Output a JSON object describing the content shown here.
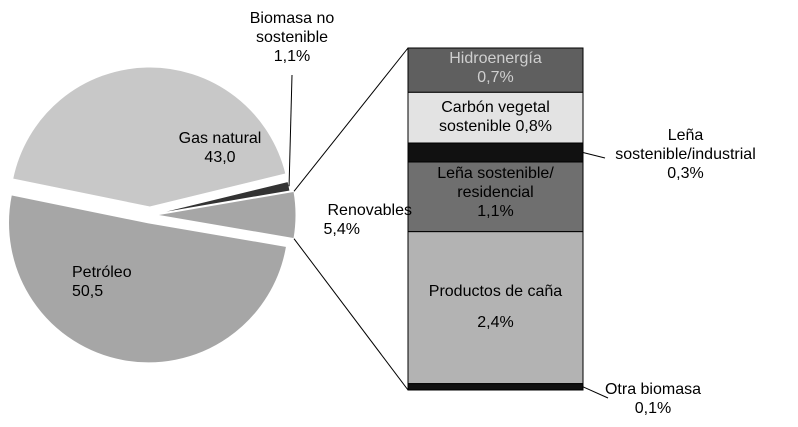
{
  "chart_data": {
    "type": "bar-of-pie",
    "categories": [
      "Renovables",
      "Biomasa no sostenible",
      "Gas natural",
      "Petróleo"
    ],
    "values": [
      5.4,
      1.1,
      43.0,
      50.5
    ],
    "value_labels": [
      "5,4%",
      "1,1%",
      "43,0",
      "50,5"
    ],
    "colors": [
      "#a6a6a6",
      "#333333",
      "#c8c8c8",
      "#a6a6a6"
    ],
    "breakdown": {
      "categories": [
        "Hidroenergía",
        "Carbón vegetal sostenible",
        "Leña sostenible/industrial",
        "Leña sostenible/ residencial",
        "Productos de caña",
        "Otra biomasa"
      ],
      "values": [
        0.7,
        0.8,
        0.3,
        1.1,
        2.4,
        0.1
      ],
      "value_labels": [
        "0,7%",
        "0,8%",
        "0,3%",
        "1,1%",
        "2,4%",
        "0,1%"
      ],
      "colors": [
        "#5f5f5f",
        "#e3e3e3",
        "#111111",
        "#6f6f6f",
        "#b3b3b3",
        "#111111"
      ],
      "text_colors": [
        "#cfcfcf",
        "#000000",
        "#000000",
        "#000000",
        "#000000",
        "#000000"
      ]
    }
  }
}
